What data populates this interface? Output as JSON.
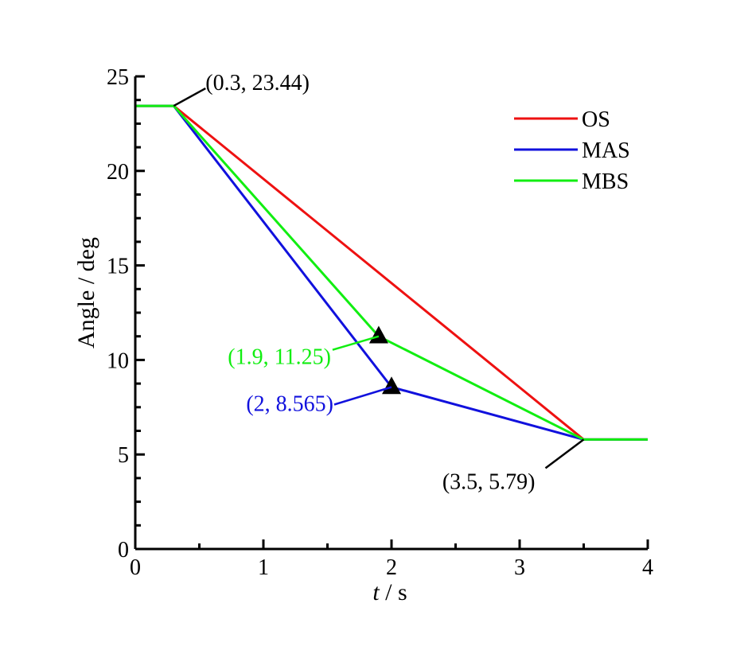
{
  "chart_data": {
    "type": "line",
    "xlabel_italic": "t",
    "xlabel_rest": " / s",
    "ylabel": "Angle / deg",
    "xlim": [
      0,
      4
    ],
    "ylim": [
      0,
      25
    ],
    "x_ticks": [
      0,
      1,
      2,
      3,
      4
    ],
    "x_tick_labels": [
      "0",
      "1",
      "2",
      "3",
      "4"
    ],
    "y_ticks": [
      0,
      5,
      10,
      15,
      20,
      25
    ],
    "y_tick_labels": [
      "0",
      "5",
      "10",
      "15",
      "20",
      "25"
    ],
    "legend_position": "top-right",
    "series": [
      {
        "name": "OS",
        "color": "#ee1111",
        "x": [
          0,
          0.3,
          3.5,
          4
        ],
        "y": [
          23.44,
          23.44,
          5.79,
          5.79
        ]
      },
      {
        "name": "MAS",
        "color": "#1111dd",
        "x": [
          0,
          0.3,
          2,
          3.5,
          4
        ],
        "y": [
          23.44,
          23.44,
          8.565,
          5.79,
          5.79
        ]
      },
      {
        "name": "MBS",
        "color": "#11ee11",
        "x": [
          0,
          0.3,
          1.9,
          3.5,
          4
        ],
        "y": [
          23.44,
          23.44,
          11.25,
          5.79,
          5.79
        ]
      }
    ],
    "markers": [
      {
        "x": 1.9,
        "y": 11.25,
        "shape": "triangle",
        "color": "#000000"
      },
      {
        "x": 2,
        "y": 8.565,
        "shape": "triangle",
        "color": "#000000"
      }
    ],
    "annotations": [
      {
        "text": "(0.3, 23.44)",
        "x": 0.3,
        "y": 23.44,
        "color": "#000000",
        "placement": "upper-right"
      },
      {
        "text": "(1.9, 11.25)",
        "x": 1.9,
        "y": 11.25,
        "color": "#11ee11",
        "placement": "lower-left"
      },
      {
        "text": "(2, 8.565)",
        "x": 2,
        "y": 8.565,
        "color": "#1111dd",
        "placement": "lower-left"
      },
      {
        "text": "(3.5, 5.79)",
        "x": 3.5,
        "y": 5.79,
        "color": "#000000",
        "placement": "lower-left"
      }
    ]
  }
}
